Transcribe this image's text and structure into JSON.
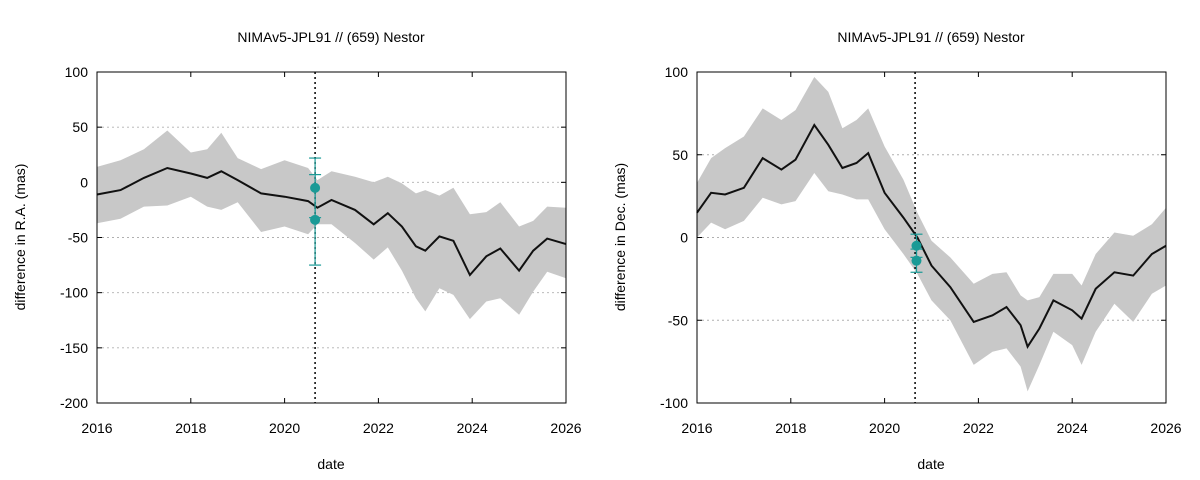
{
  "charts": [
    {
      "title": "NIMAv5-JPL91 // (659) Nestor",
      "xlabel": "date",
      "ylabel": "difference in R.A. (mas)",
      "xticks": [
        "2016",
        "2018",
        "2020",
        "2022",
        "2024",
        "2026"
      ],
      "yticks": [
        "-200",
        "-150",
        "-100",
        "-50",
        "0",
        "50",
        "100"
      ]
    },
    {
      "title": "NIMAv5-JPL91 // (659) Nestor",
      "xlabel": "date",
      "ylabel": "difference in Dec. (mas)",
      "xticks": [
        "2016",
        "2018",
        "2020",
        "2022",
        "2024",
        "2026"
      ],
      "yticks": [
        "-100",
        "-50",
        "0",
        "50",
        "100"
      ]
    }
  ],
  "chart_data": [
    {
      "type": "line",
      "title": "NIMAv5-JPL91 // (659) Nestor",
      "xlabel": "date",
      "ylabel": "difference in R.A. (mas)",
      "xlim": [
        2016,
        2026
      ],
      "ylim": [
        -200,
        100
      ],
      "grid": true,
      "vline": 2020.65,
      "curve": {
        "x": [
          2016.0,
          2016.5,
          2017.0,
          2017.5,
          2018.0,
          2018.35,
          2018.65,
          2019.0,
          2019.5,
          2020.0,
          2020.5,
          2020.7,
          2021.0,
          2021.5,
          2021.9,
          2022.2,
          2022.5,
          2022.8,
          2023.0,
          2023.3,
          2023.6,
          2023.95,
          2024.3,
          2024.6,
          2025.0,
          2025.3,
          2025.6,
          2026.0
        ],
        "y": [
          -11,
          -7,
          4,
          13,
          8,
          4,
          10,
          2,
          -10,
          -13,
          -17,
          -23,
          -16,
          -25,
          -38,
          -28,
          -40,
          -58,
          -62,
          -49,
          -53,
          -84,
          -67,
          -60,
          -80,
          -62,
          -51,
          -56
        ]
      },
      "band": {
        "x": [
          2016.0,
          2016.5,
          2017.0,
          2017.5,
          2018.0,
          2018.35,
          2018.65,
          2019.0,
          2019.5,
          2020.0,
          2020.5,
          2020.7,
          2021.0,
          2021.5,
          2021.9,
          2022.2,
          2022.5,
          2022.8,
          2023.0,
          2023.3,
          2023.6,
          2023.95,
          2024.3,
          2024.6,
          2025.0,
          2025.3,
          2025.6,
          2026.0
        ],
        "upper": [
          14,
          20,
          30,
          47,
          27,
          30,
          45,
          22,
          12,
          20,
          13,
          2,
          10,
          5,
          0,
          5,
          -1,
          -10,
          -7,
          -12,
          -5,
          -29,
          -27,
          -18,
          -40,
          -35,
          -22,
          -23
        ],
        "lower": [
          -37,
          -33,
          -22,
          -21,
          -13,
          -22,
          -25,
          -18,
          -45,
          -40,
          -47,
          -38,
          -38,
          -55,
          -70,
          -59,
          -80,
          -105,
          -117,
          -96,
          -102,
          -124,
          -108,
          -105,
          -120,
          -99,
          -81,
          -87
        ]
      },
      "points": [
        {
          "x": 2020.65,
          "y": -5,
          "err_low": -32,
          "err_high": 22
        },
        {
          "x": 2020.65,
          "y": -34,
          "err_low": -75,
          "err_high": 7
        }
      ]
    },
    {
      "type": "line",
      "title": "NIMAv5-JPL91 // (659) Nestor",
      "xlabel": "date",
      "ylabel": "difference in Dec. (mas)",
      "xlim": [
        2016,
        2026
      ],
      "ylim": [
        -100,
        100
      ],
      "grid": true,
      "vline": 2020.65,
      "curve": {
        "x": [
          2016.0,
          2016.3,
          2016.6,
          2017.0,
          2017.4,
          2017.8,
          2018.1,
          2018.5,
          2018.8,
          2019.1,
          2019.4,
          2019.65,
          2020.0,
          2020.4,
          2020.7,
          2021.0,
          2021.4,
          2021.9,
          2022.3,
          2022.6,
          2022.9,
          2023.05,
          2023.3,
          2023.6,
          2024.0,
          2024.2,
          2024.5,
          2024.9,
          2025.3,
          2025.7,
          2026.0
        ],
        "y": [
          15,
          27,
          26,
          30,
          48,
          41,
          47,
          68,
          56,
          42,
          45,
          51,
          27,
          12,
          0,
          -17,
          -30,
          -51,
          -47,
          -42,
          -53,
          -66,
          -55,
          -38,
          -44,
          -49,
          -31,
          -21,
          -23,
          -10,
          -5
        ]
      },
      "band": {
        "x": [
          2016.0,
          2016.3,
          2016.6,
          2017.0,
          2017.4,
          2017.8,
          2018.1,
          2018.5,
          2018.8,
          2019.1,
          2019.4,
          2019.65,
          2020.0,
          2020.4,
          2020.7,
          2021.0,
          2021.4,
          2021.9,
          2022.3,
          2022.6,
          2022.9,
          2023.05,
          2023.3,
          2023.6,
          2024.0,
          2024.2,
          2024.5,
          2024.9,
          2025.3,
          2025.7,
          2026.0
        ],
        "upper": [
          33,
          48,
          54,
          61,
          78,
          71,
          77,
          97,
          88,
          66,
          71,
          78,
          55,
          35,
          15,
          -2,
          -12,
          -28,
          -22,
          -21,
          -35,
          -38,
          -36,
          -22,
          -22,
          -29,
          -10,
          3,
          1,
          8,
          18
        ],
        "lower": [
          0,
          9,
          5,
          10,
          24,
          20,
          22,
          39,
          28,
          26,
          23,
          23,
          5,
          -10,
          -22,
          -38,
          -50,
          -77,
          -69,
          -67,
          -78,
          -93,
          -77,
          -57,
          -65,
          -77,
          -57,
          -40,
          -51,
          -34,
          -29
        ]
      },
      "points": [
        {
          "x": 2020.68,
          "y": -5,
          "err_low": -12,
          "err_high": 2
        },
        {
          "x": 2020.68,
          "y": -14,
          "err_low": -21,
          "err_high": -7
        }
      ]
    }
  ]
}
